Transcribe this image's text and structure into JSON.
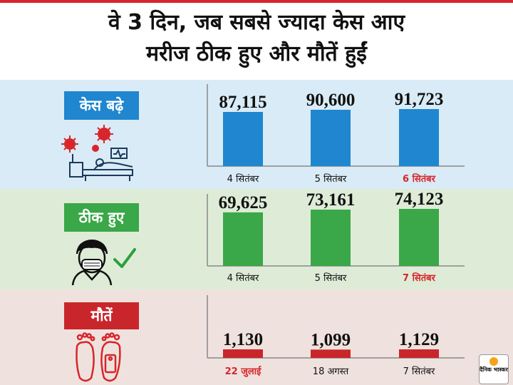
{
  "title_line1": "वे 3 दिन, जब सबसे ज्यादा केस आए",
  "title_line2": "मरीज ठीक हुए और मौतें हुईं",
  "colors": {
    "cases": "#1f86cf",
    "recovered": "#3aa748",
    "deaths": "#c9262b",
    "highlight_label": "#d7262b"
  },
  "icons": [
    "virus-hospital-bed-icon",
    "masked-person-icon",
    "checkmark-icon",
    "feet-with-tag-icon"
  ],
  "logo_text": "दैनिक भास्कर",
  "chart_data": [
    {
      "type": "bar",
      "title": "केस बढ़े",
      "categories": [
        "4 सितंबर",
        "5 सितंबर",
        "6 सितंबर"
      ],
      "values": [
        87115,
        90600,
        91723
      ],
      "value_labels": [
        "87,115",
        "90,600",
        "91,723"
      ],
      "highlight_index": 2,
      "color": "#1f86cf"
    },
    {
      "type": "bar",
      "title": "ठीक हुए",
      "categories": [
        "4 सितंबर",
        "5 सितंबर",
        "7 सितंबर"
      ],
      "values": [
        69625,
        73161,
        74123
      ],
      "value_labels": [
        "69,625",
        "73,161",
        "74,123"
      ],
      "highlight_index": 2,
      "color": "#3aa748"
    },
    {
      "type": "bar",
      "title": "मौतें",
      "categories": [
        "22 जुलाई",
        "18 अगस्त",
        "7 सितंबर"
      ],
      "values": [
        1130,
        1099,
        1129
      ],
      "value_labels": [
        "1,130",
        "1,099",
        "1,129"
      ],
      "highlight_index": 0,
      "color": "#c9262b"
    }
  ]
}
